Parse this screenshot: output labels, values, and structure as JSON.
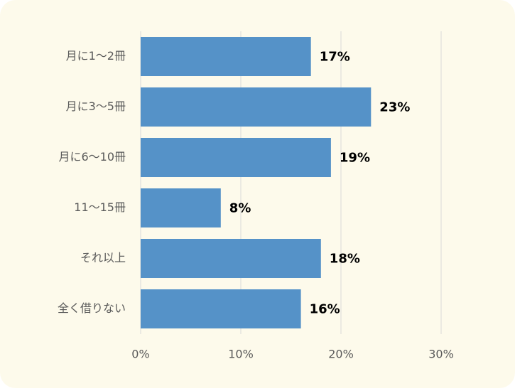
{
  "chart_data": {
    "type": "hbar",
    "categories": [
      "月に1～2冊",
      "月に3～5冊",
      "月に6～10冊",
      "11～15冊",
      "それ以上",
      "全く借りない"
    ],
    "values": [
      17,
      23,
      19,
      8,
      18,
      16
    ],
    "value_labels": [
      "17%",
      "23%",
      "19%",
      "8%",
      "18%",
      "16%"
    ],
    "color": "#5592c8",
    "xlim": [
      0,
      30
    ],
    "xticks": [
      {
        "value": 0,
        "label": "0%"
      },
      {
        "value": 10,
        "label": "10%"
      },
      {
        "value": 20,
        "label": "20%"
      },
      {
        "value": 30,
        "label": "30%"
      }
    ],
    "grid": true
  }
}
